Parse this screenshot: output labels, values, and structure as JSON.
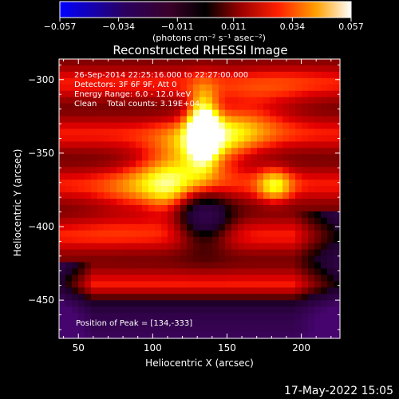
{
  "chart_data": {
    "type": "heatmap",
    "title": "Reconstructed RHESSI Image",
    "xlabel": "Heliocentric X (arcsec)",
    "ylabel": "Heliocentric Y (arcsec)",
    "xlim": [
      37,
      226
    ],
    "ylim": [
      -476,
      -286
    ],
    "x_ticks": [
      50,
      100,
      150,
      200
    ],
    "y_ticks": [
      -300,
      -350,
      -400,
      -450
    ],
    "grid": false,
    "colorbar": {
      "colormap": "hot",
      "range": [
        -0.057,
        0.057
      ],
      "tick_values": [
        -0.057,
        -0.034,
        -0.011,
        0.011,
        0.034,
        0.057
      ],
      "tick_labels": [
        "-0.057",
        "-0.034",
        "-0.011",
        "0.011",
        "0.034",
        "0.057"
      ],
      "units": "(photons cm⁻² s⁻¹ asec⁻²)"
    },
    "annotations": [
      "26-Sep-2014 22:25:16.000 to 22:27:00.000",
      "Detectors: 3F 6F 9F, Att 0",
      "Energy Range: 6.0 - 12.0 keV",
      "Clean    Total counts: 3.19E+04"
    ],
    "peak_label": "Position of Peak = [134,-333]",
    "peak": [
      134,
      -333
    ],
    "sources": [
      {
        "x": 134,
        "y": -333,
        "peak_value": 0.057
      },
      {
        "x": 182,
        "y": -372,
        "peak_value": 0.04
      }
    ]
  },
  "timestamp": "17-May-2022 15:05"
}
